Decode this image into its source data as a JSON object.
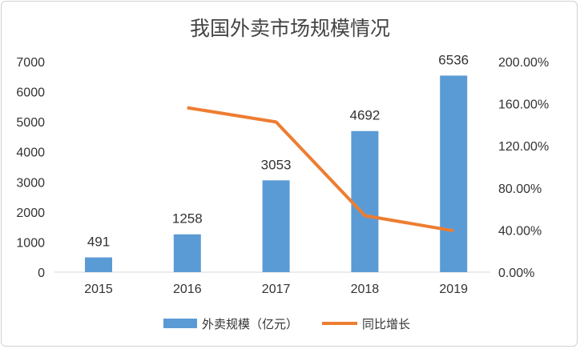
{
  "chart_data": {
    "type": "bar+line",
    "title": "我国外卖市场规模情况",
    "categories": [
      "2015",
      "2016",
      "2017",
      "2018",
      "2019"
    ],
    "series": [
      {
        "name": "外卖规模（亿元）",
        "type": "bar",
        "axis": "left",
        "color": "#5B9BD5",
        "values": [
          491,
          1258,
          3053,
          4692,
          6536
        ],
        "labels": [
          "491",
          "1258",
          "3053",
          "4692",
          "6536"
        ]
      },
      {
        "name": "同比增长",
        "type": "line",
        "axis": "right",
        "color": "#ED7D31",
        "values": [
          null,
          156.2,
          142.7,
          53.7,
          39.3
        ]
      }
    ],
    "left_axis": {
      "ylim": [
        0,
        7000
      ],
      "ticks": [
        "0",
        "1000",
        "2000",
        "3000",
        "4000",
        "5000",
        "6000",
        "7000"
      ]
    },
    "right_axis": {
      "ylim": [
        0,
        200
      ],
      "ticks": [
        "0.00%",
        "40.00%",
        "80.00%",
        "120.00%",
        "160.00%",
        "200.00%"
      ]
    },
    "legend": "bottom",
    "grid": false
  }
}
